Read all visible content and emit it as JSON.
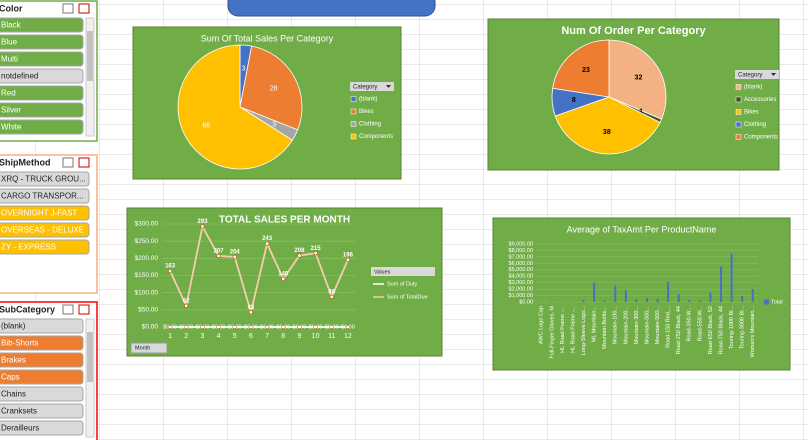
{
  "slicers": [
    {
      "title": "Color",
      "items": [
        {
          "label": "Black",
          "selected": true
        },
        {
          "label": "Blue",
          "selected": true
        },
        {
          "label": "Multi",
          "selected": true
        },
        {
          "label": "notdefined",
          "selected": false
        },
        {
          "label": "Red",
          "selected": true
        },
        {
          "label": "Silver",
          "selected": true
        },
        {
          "label": "White",
          "selected": true
        }
      ]
    },
    {
      "title": "ShipMethod",
      "items": [
        {
          "label": "XRQ - TRUCK GROU...",
          "selected": false
        },
        {
          "label": "CARGO TRANSPOR...",
          "selected": false
        },
        {
          "label": "OVERNIGHT J-FAST",
          "selected": true
        },
        {
          "label": "OVERSEAS - DELUXE",
          "selected": true
        },
        {
          "label": "ZY - EXPRESS",
          "selected": true
        }
      ]
    },
    {
      "title": "SubCategory",
      "items": [
        {
          "label": "(blank)",
          "selected": false
        },
        {
          "label": "Bib-Shorts",
          "selected": true
        },
        {
          "label": "Brakes",
          "selected": true
        },
        {
          "label": "Caps",
          "selected": true
        },
        {
          "label": "Chains",
          "selected": false
        },
        {
          "label": "Cranksets",
          "selected": false
        },
        {
          "label": "Derailleurs",
          "selected": false
        }
      ]
    }
  ],
  "chart_data": [
    {
      "type": "pie",
      "title": "Sum Of Total Sales Per Category",
      "legend_title": "Category",
      "categories": [
        "(blank)",
        "Bikes",
        "Clothing",
        "Components"
      ],
      "values": [
        3,
        28,
        3,
        66
      ],
      "colors": [
        "#4472c4",
        "#ed7d31",
        "#a5a5a5",
        "#ffc000"
      ]
    },
    {
      "type": "pie",
      "title": "Num Of Order Per Category",
      "legend_title": "Category",
      "categories": [
        "(blank)",
        "Accessories",
        "Bikes",
        "Clothing",
        "Components"
      ],
      "values": [
        32,
        1,
        38,
        8,
        23
      ],
      "colors": [
        "#f4b183",
        "#375623",
        "#ffc000",
        "#4472c4",
        "#ed7d31"
      ]
    },
    {
      "type": "line",
      "title": "TOTAL SALES PER MONTH",
      "legend_title": "Values",
      "field_button": "Month",
      "categories": [
        "1",
        "2",
        "3",
        "4",
        "5",
        "6",
        "7",
        "8",
        "9",
        "10",
        "11",
        "12"
      ],
      "series": [
        {
          "name": "Sum of Duty",
          "color": "#ffffff",
          "values": [
            0,
            0,
            0,
            0,
            0,
            0,
            0,
            0,
            0,
            0,
            0,
            0
          ],
          "value_labels": [
            "$0.00",
            "$0.00",
            "$0.00",
            "$0.00",
            "$0.00",
            "$0.00",
            "$0.00",
            "$0.00",
            "$0.00",
            "$0.00",
            "$0.00",
            "$0.00"
          ]
        },
        {
          "name": "Sum of TotalDue",
          "color": "#f8cbad",
          "values": [
            163,
            62,
            293,
            207,
            204,
            43,
            243,
            140,
            208,
            215,
            88,
            196
          ]
        }
      ],
      "ylim": [
        0,
        300
      ],
      "yticks": [
        {
          "value": 0,
          "label": "$0.00"
        },
        {
          "value": 50,
          "label": "$50.00"
        },
        {
          "value": 100,
          "label": "$100.00"
        },
        {
          "value": 150,
          "label": "$150.00"
        },
        {
          "value": 200,
          "label": "$200.00"
        },
        {
          "value": 250,
          "label": "$250.00"
        },
        {
          "value": 300,
          "label": "$300.00"
        }
      ],
      "grid": true
    },
    {
      "type": "bar",
      "title": "Average of TaxAmt Per ProductName",
      "categories": [
        "AWC Logo Cap",
        "Full-Finger Gloves, M",
        "HL Road Frame -...",
        "HL Road Frame -...",
        "Long-Sleeve Logo...",
        "ML Mountain...",
        "Mountain Bottle...",
        "Mountain-100...",
        "Mountain-200...",
        "Mountain-300...",
        "Mountain-500...",
        "Mountain-500...",
        "Road-150 Red,...",
        "Road-250 Black, 44",
        "Road-350-W...",
        "Road-550-W...",
        "Road-650 Black, 52",
        "Road-750 Black, 44",
        "Touring-1000 Bl...",
        "Touring-3000 Bl...",
        "Women's Mountain..."
      ],
      "series": [
        {
          "name": "Total",
          "color": "#4472c4",
          "values": [
            50,
            100,
            80,
            60,
            300,
            3000,
            200,
            2500,
            1800,
            400,
            600,
            500,
            3100,
            1200,
            300,
            200,
            1500,
            5500,
            7500,
            900,
            2000
          ]
        }
      ],
      "ylim": [
        0,
        9000
      ],
      "yticks": [
        {
          "value": 0,
          "label": "$0.00"
        },
        {
          "value": 1000,
          "label": "$1,000.00"
        },
        {
          "value": 2000,
          "label": "$2,000.00"
        },
        {
          "value": 3000,
          "label": "$3,000.00"
        },
        {
          "value": 4000,
          "label": "$4,000.00"
        },
        {
          "value": 5000,
          "label": "$5,000.00"
        },
        {
          "value": 6000,
          "label": "$6,000.00"
        },
        {
          "value": 7000,
          "label": "$7,000.00"
        },
        {
          "value": 8000,
          "label": "$8,000.00"
        },
        {
          "value": 9000,
          "label": "$9,000.00"
        }
      ],
      "grid": true
    }
  ]
}
